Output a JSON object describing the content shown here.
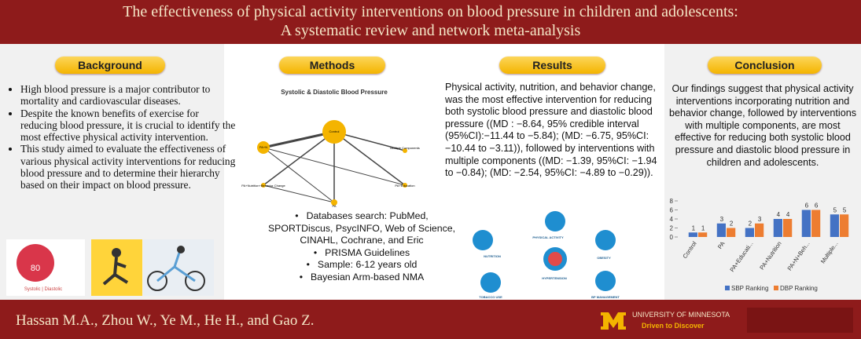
{
  "header": {
    "title_line1": "The effectiveness of physical activity interventions on blood pressure in children and adolescents:",
    "title_line2": "A systematic review and network meta-analysis"
  },
  "background": {
    "heading": "Background",
    "bullets": [
      "High blood pressure is a major contributor to mortality and cardiovascular diseases.",
      "Despite the known benefits of exercise for reducing blood pressure, it is crucial to identify the most effective physical activity intervention.",
      "This study aimed to evaluate the effectiveness of various physical activity interventions for reducing blood pressure and to determine their hierarchy based on their impact on blood pressure."
    ],
    "image_number": "80",
    "image_caption": "Systolic | Diastolic"
  },
  "methods": {
    "heading": "Methods",
    "diagram_title": "Systolic & Diastolic Blood Pressure",
    "nodes": [
      "Control",
      "PA+N",
      "Multiple Components",
      "PA+Nutrition+Behavior Change",
      "PA+Education",
      "PA"
    ],
    "bullets": [
      "Databases search: PubMed, SPORTDiscus, PsycINFO, Web of Science, CINAHL, Cochrane, and Eric",
      "PRISMA Guidelines",
      "Sample: 6-12 years old",
      "Bayesian Arm-based NMA"
    ]
  },
  "results": {
    "heading": "Results",
    "text": "Physical activity, nutrition, and behavior change, was the most effective intervention for reducing both systolic blood pressure and diastolic blood pressure ((MD : −8.64, 95% credible interval (95%CI):−11.44 to −5.84); (MD: −6.75, 95%CI: −10.44 to −3.11)), followed by interventions with multiple components ((MD: −1.39, 95%CI: −1.94 to −0.84); (MD: −2.54, 95%CI: −4.89 to −0.29)).",
    "icons": [
      "PHYSICAL ACTIVITY",
      "NUTRITION",
      "OBESITY",
      "HYPERTENSION",
      "TOBACCO USE",
      "BP MANAGEMENT"
    ]
  },
  "conclusion": {
    "heading": "Conclusion",
    "text": "Our findings suggest that physical activity interventions incorporating nutrition and behavior change, followed by interventions with multiple components, are most effective for reducing both systolic blood pressure and diastolic blood pressure in children and adolescents."
  },
  "chart_data": {
    "type": "bar",
    "categories": [
      "Control",
      "PA",
      "PA+Educati...",
      "PA+Nutrition",
      "PA+N+Beh...",
      "Multiple..."
    ],
    "series": [
      {
        "name": "SBP Ranking",
        "color": "#4472c4",
        "values": [
          1,
          3,
          2,
          4,
          6,
          5
        ]
      },
      {
        "name": "DBP Ranking",
        "color": "#ed7d31",
        "values": [
          1,
          2,
          3,
          4,
          6,
          5
        ]
      }
    ],
    "ylim": [
      0,
      8
    ],
    "yticks": [
      0,
      2,
      4,
      6,
      8
    ],
    "legend": "bottom"
  },
  "footer": {
    "authors": "Hassan M.A., Zhou W., Ye M., He H., and Gao Z.",
    "university": "UNIVERSITY OF MINNESOTA",
    "motto": "Driven to Discover"
  }
}
